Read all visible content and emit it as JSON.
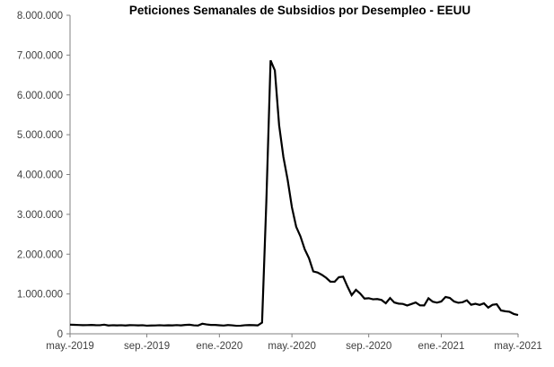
{
  "colors": {
    "background": "#ffffff",
    "line": "#000000",
    "axis": "#808080",
    "tick_label": "#3f3f3f",
    "title": "#000000"
  },
  "chart_data": {
    "type": "line",
    "title": "Peticiones Semanales de Subsidios por Desempleo - EEUU",
    "xlabel": "",
    "ylabel": "",
    "ylim": [
      0,
      8000000
    ],
    "y_tick_interval": 1000000,
    "grid": false,
    "legend": false,
    "x_start": "2019-05-04",
    "x_interval": "weekly",
    "x_tick_labels": [
      "may.-2019",
      "sep.-2019",
      "ene.-2020",
      "may.-2020",
      "sep.-2020",
      "ene.-2021",
      "may.-2021"
    ],
    "x_tick_indices": [
      0,
      18,
      35,
      52,
      70,
      87,
      105
    ],
    "y_tick_labels": [
      "0",
      "1.000.000",
      "2.000.000",
      "3.000.000",
      "4.000.000",
      "5.000.000",
      "6.000.000",
      "7.000.000",
      "8.000.000"
    ],
    "series": [
      {
        "name": "Peticiones semanales de subsidios por desempleo",
        "values_unit": "claims (thousands)",
        "values_in_thousands": [
          230,
          225,
          221,
          217,
          218,
          222,
          217,
          216,
          229,
          209,
          216,
          211,
          215,
          209,
          217,
          216,
          211,
          215,
          204,
          208,
          210,
          215,
          210,
          214,
          212,
          218,
          211,
          222,
          228,
          213,
          207,
          252,
          235,
          223,
          222,
          214,
          207,
          220,
          212,
          201,
          204,
          215,
          219,
          217,
          211,
          282,
          3307,
          6867,
          6615,
          5237,
          4442,
          3867,
          3176,
          2687,
          2446,
          2123,
          1897,
          1566,
          1540,
          1482,
          1408,
          1310,
          1308,
          1422,
          1435,
          1191,
          971,
          1104,
          1011,
          884,
          893,
          866,
          873,
          849,
          767,
          898,
          787,
          758,
          751,
          711,
          748,
          787,
          716,
          712,
          892,
          806,
          782,
          812,
          926,
          900,
          812,
          779,
          793,
          841,
          730,
          754,
          725,
          765,
          658,
          729,
          742,
          586,
          566,
          553,
          498,
          473
        ]
      }
    ]
  }
}
